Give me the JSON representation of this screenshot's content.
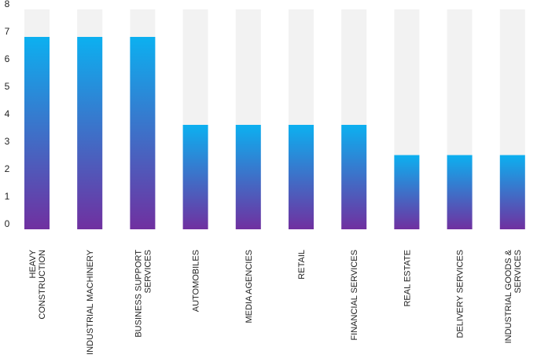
{
  "chart_data": {
    "type": "bar",
    "title": "",
    "xlabel": "",
    "ylabel": "",
    "ylim": [
      0,
      8
    ],
    "yticks": [
      0,
      1,
      2,
      3,
      4,
      5,
      6,
      7,
      8
    ],
    "grid": false,
    "legend": "none",
    "categories": [
      [
        "HEAVY",
        "CONSTRUCTION"
      ],
      [
        "INDUSTRIAL MACHINERY"
      ],
      [
        "BUSINESS SUPPORT",
        "SERVICES"
      ],
      [
        "AUTOMOBILES"
      ],
      [
        "MEDIA AGENCIES"
      ],
      [
        "RETAIL"
      ],
      [
        "FINANCIAL SERVICES"
      ],
      [
        "REAL ESTATE"
      ],
      [
        "DELIVERY SERVICES"
      ],
      [
        "INDUSTRIAL GOODS &",
        "SERVICES"
      ]
    ],
    "values": [
      7,
      7,
      7,
      3.8,
      3.8,
      3.8,
      3.8,
      2.7,
      2.7,
      2.7
    ],
    "background_max": 8,
    "colors": {
      "bar_top": "#0cb0f0",
      "bar_bottom": "#7030a0",
      "track": "#f2f2f2"
    }
  }
}
